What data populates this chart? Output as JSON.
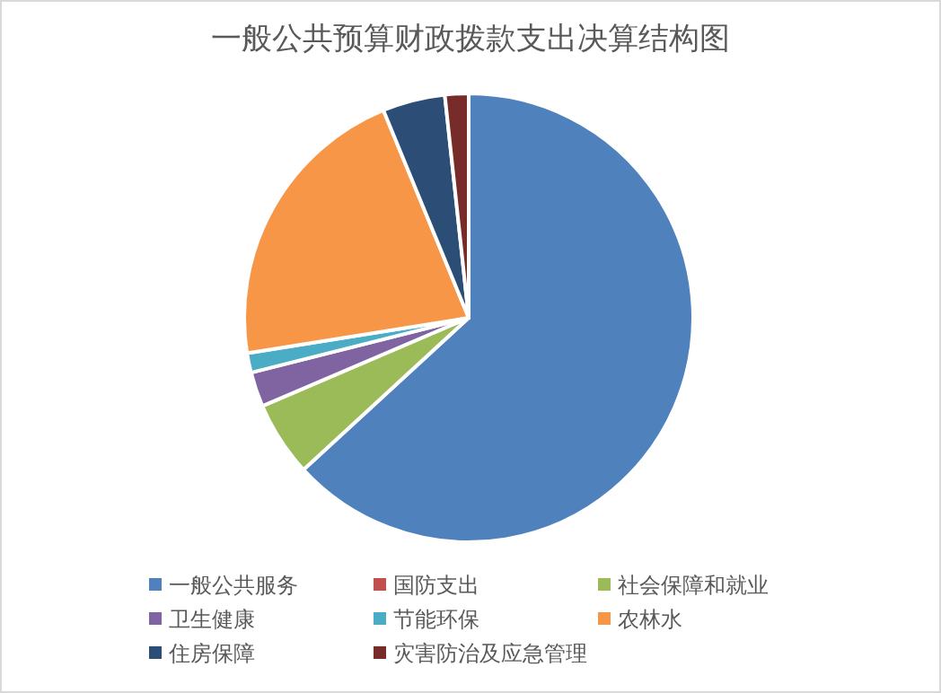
{
  "chart_data": {
    "type": "pie",
    "title": "一般公共预算财政拨款支出决算结构图",
    "categories": [
      "一般公共服务",
      "国防支出",
      "社会保障和就业",
      "卫生健康",
      "节能环保",
      "农林水",
      "住房保障",
      "灾害防治及应急管理"
    ],
    "values": [
      63.1,
      null,
      5.4,
      2.5,
      1.4,
      21.3,
      4.5,
      1.7
    ],
    "colors": [
      "#4f81bd",
      "#c0504d",
      "#9bbb59",
      "#8064a2",
      "#4bacc6",
      "#f79646",
      "#2c4d75",
      "#772c2a"
    ],
    "legend": "bottom"
  }
}
